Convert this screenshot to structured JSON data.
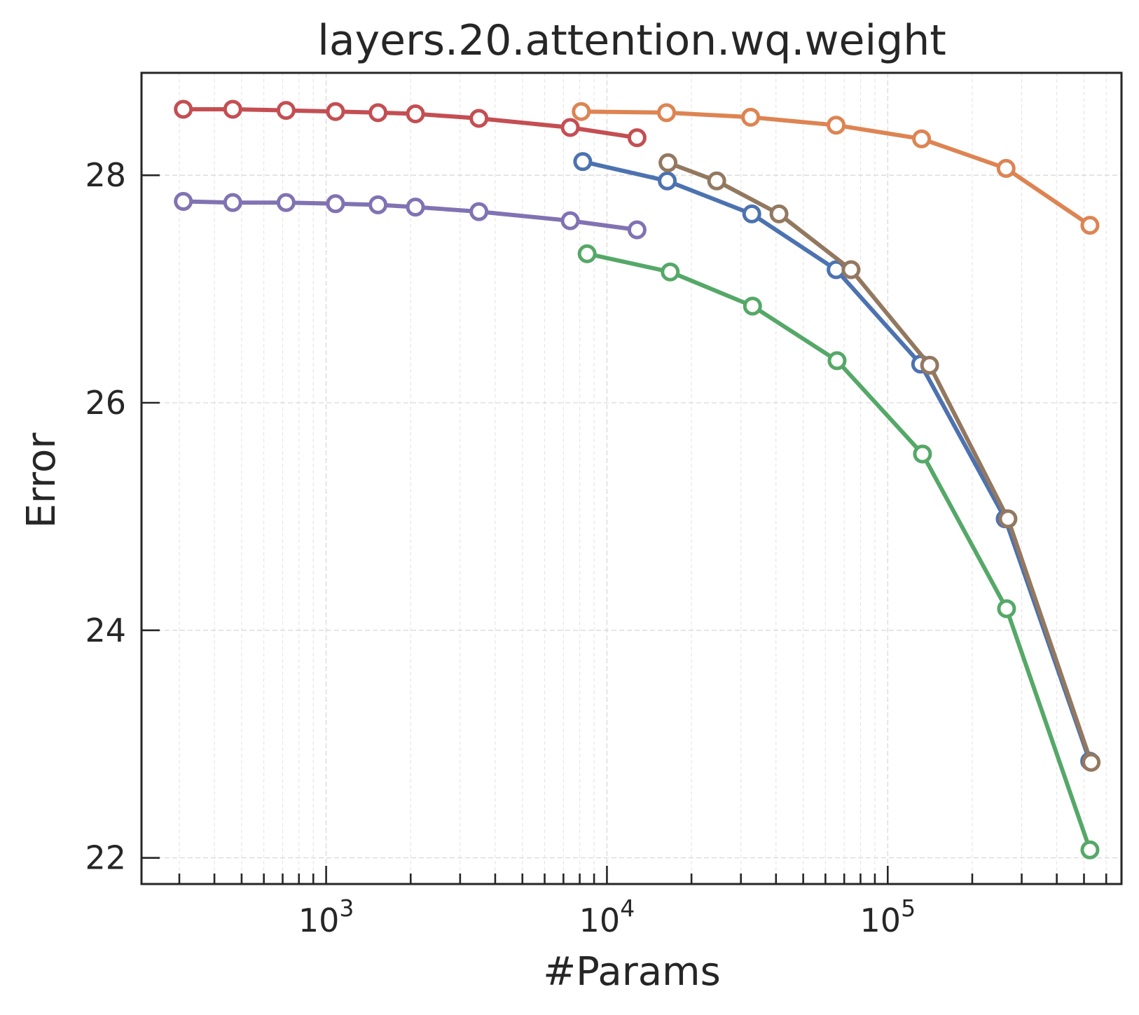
{
  "chart_data": {
    "type": "line",
    "title": "layers.20.attention.wq.weight",
    "xlabel": "#Params",
    "ylabel": "Error",
    "xscale": "log",
    "xlim": [
      220,
      680000
    ],
    "ylim": [
      21.77,
      28.9
    ],
    "grid": true,
    "x_ticks": [
      {
        "value": 1000,
        "base": "10",
        "exp": "3"
      },
      {
        "value": 10000,
        "base": "10",
        "exp": "4"
      },
      {
        "value": 100000,
        "base": "10",
        "exp": "5"
      }
    ],
    "y_ticks": [
      {
        "value": 22,
        "label": "22"
      },
      {
        "value": 24,
        "label": "24"
      },
      {
        "value": 26,
        "label": "26"
      },
      {
        "value": 28,
        "label": "28"
      }
    ],
    "series": [
      {
        "name": "blue",
        "color": "#4c72b0",
        "x": [
          8200,
          16400,
          32800,
          65500,
          131000,
          262000,
          524000
        ],
        "y": [
          28.12,
          27.95,
          27.66,
          27.17,
          26.34,
          24.98,
          22.85
        ]
      },
      {
        "name": "orange",
        "color": "#dd8452",
        "x": [
          8100,
          16300,
          32500,
          65500,
          132000,
          264000,
          525000
        ],
        "y": [
          28.56,
          28.55,
          28.51,
          28.44,
          28.32,
          28.06,
          27.56
        ]
      },
      {
        "name": "green",
        "color": "#55a868",
        "x": [
          8500,
          16800,
          33000,
          66000,
          133000,
          265000,
          525000
        ],
        "y": [
          27.31,
          27.15,
          26.85,
          26.37,
          25.55,
          24.19,
          22.07
        ]
      },
      {
        "name": "red",
        "color": "#c44e52",
        "x": [
          310,
          465,
          720,
          1080,
          1530,
          2080,
          3500,
          7400,
          12800
        ],
        "y": [
          28.58,
          28.58,
          28.57,
          28.56,
          28.55,
          28.54,
          28.5,
          28.42,
          28.33
        ]
      },
      {
        "name": "purple",
        "color": "#8172b3",
        "x": [
          310,
          465,
          720,
          1080,
          1530,
          2080,
          3500,
          7400,
          12800
        ],
        "y": [
          27.77,
          27.76,
          27.76,
          27.75,
          27.74,
          27.72,
          27.68,
          27.6,
          27.52
        ]
      },
      {
        "name": "brown",
        "color": "#937860",
        "x": [
          16500,
          24600,
          41000,
          74000,
          141000,
          268000,
          530000
        ],
        "y": [
          28.11,
          27.95,
          27.66,
          27.17,
          26.33,
          24.98,
          22.84
        ]
      }
    ]
  }
}
